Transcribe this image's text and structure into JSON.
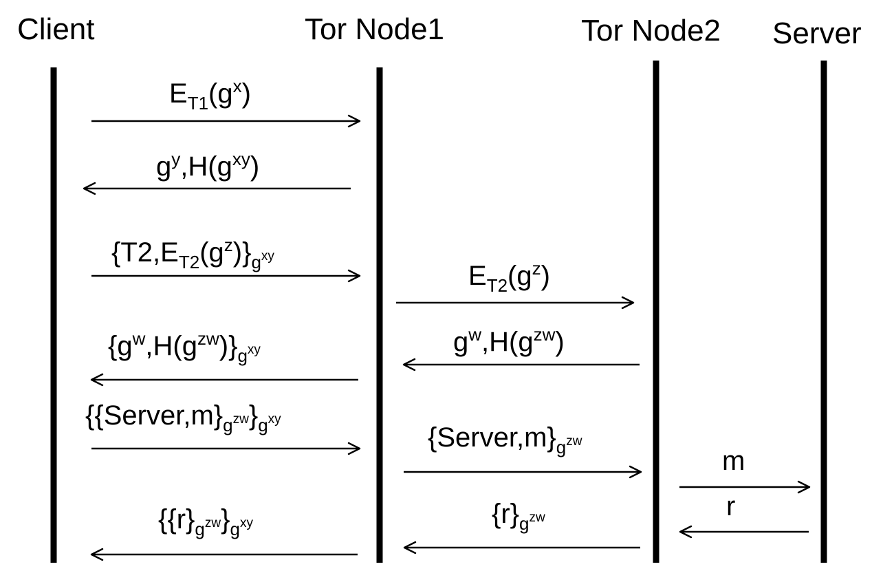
{
  "actors": {
    "client": "Client",
    "tor_node1": "Tor Node1",
    "tor_node2": "Tor Node2",
    "server": "Server"
  },
  "messages": {
    "m1": {
      "a": "E",
      "b": "T1",
      "c": "(g",
      "d": "x",
      "e": ")"
    },
    "m2": {
      "a": "g",
      "b": "y",
      "c": ",H(g",
      "d": "xy",
      "e": ")"
    },
    "m3": {
      "a": "{T2,E",
      "b": "T2",
      "c": "(g",
      "d": "z",
      "e": ")}",
      "f": "g",
      "g": "xy"
    },
    "m4": {
      "a": "E",
      "b": "T2",
      "c": "(g",
      "d": "z",
      "e": ")"
    },
    "m5": {
      "a": "g",
      "b": "w",
      "c": ",H(g",
      "d": "zw",
      "e": ")"
    },
    "m6": {
      "a": "{g",
      "b": "w",
      "c": ",H(g",
      "d": "zw",
      "e": ")}",
      "f": "g",
      "g": "xy"
    },
    "m7": {
      "a": "{{Server,m}",
      "b": "g",
      "c": "zw",
      "d": "}",
      "e": "g",
      "f": "xy"
    },
    "m8": {
      "a": "{Server,m}",
      "b": "g",
      "c": "zw"
    },
    "m9": {
      "a": "m"
    },
    "m10": {
      "a": "r"
    },
    "m11": {
      "a": "{r}",
      "b": "g",
      "c": "zw"
    },
    "m12": {
      "a": "{{r}",
      "b": "g",
      "c": "zw",
      "d": "}",
      "e": "g",
      "f": "xy"
    }
  }
}
